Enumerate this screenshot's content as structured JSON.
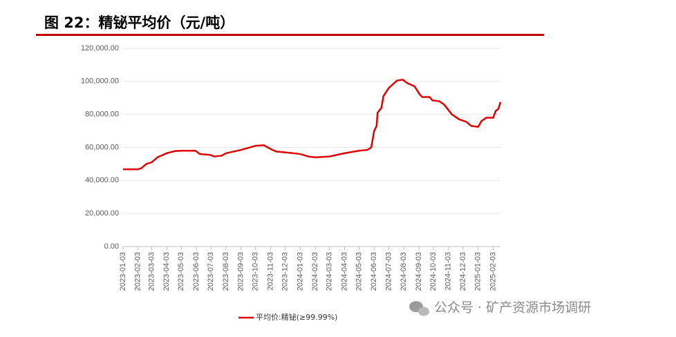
{
  "chart_data": {
    "type": "line",
    "title": "图 22：精铋平均价（元/吨）",
    "watermark": "公众号 · 矿产资源市场调研",
    "x": [
      "2023-01-03",
      "2023-02-03",
      "2023-02-10",
      "2023-02-20",
      "2023-03-03",
      "2023-03-15",
      "2023-04-03",
      "2023-04-20",
      "2023-05-03",
      "2023-06-01",
      "2023-06-10",
      "2023-07-01",
      "2023-07-10",
      "2023-07-25",
      "2023-08-03",
      "2023-09-03",
      "2023-10-03",
      "2023-10-20",
      "2023-11-03",
      "2023-11-15",
      "2023-12-03",
      "2024-01-03",
      "2024-01-20",
      "2024-02-03",
      "2024-03-03",
      "2024-04-03",
      "2024-05-03",
      "2024-05-20",
      "2024-05-28",
      "2024-06-03",
      "2024-06-08",
      "2024-06-10",
      "2024-06-18",
      "2024-06-22",
      "2024-07-03",
      "2024-07-20",
      "2024-08-01",
      "2024-08-10",
      "2024-08-25",
      "2024-09-05",
      "2024-09-10",
      "2024-09-25",
      "2024-10-01",
      "2024-10-15",
      "2024-10-25",
      "2024-11-10",
      "2024-11-25",
      "2024-12-10",
      "2024-12-20",
      "2025-01-03",
      "2025-01-10",
      "2025-01-20",
      "2025-02-03",
      "2025-02-08",
      "2025-02-14",
      "2025-02-18"
    ],
    "series": [
      {
        "name": "平均价:精铋(≥99.99%)",
        "color": "#e00000",
        "values": [
          46800,
          46800,
          47500,
          50000,
          51000,
          54000,
          56500,
          57800,
          58000,
          58000,
          56000,
          55500,
          54500,
          55000,
          56500,
          58500,
          61000,
          61300,
          59000,
          57500,
          57000,
          56000,
          54500,
          54000,
          54500,
          56500,
          58000,
          58500,
          60000,
          70000,
          73000,
          81000,
          84000,
          91000,
          96000,
          100500,
          101000,
          99000,
          97000,
          92000,
          90500,
          90500,
          88500,
          88000,
          86000,
          80000,
          77000,
          75500,
          73000,
          72500,
          76000,
          78000,
          78000,
          82000,
          83500,
          87500
        ]
      }
    ],
    "xlim": [
      "2023-01-03",
      "2025-02-18"
    ],
    "xticks": [
      "2023-01-03",
      "2023-02-03",
      "2023-03-03",
      "2023-04-03",
      "2023-05-03",
      "2023-06-03",
      "2023-07-03",
      "2023-08-03",
      "2023-09-03",
      "2023-10-03",
      "2023-11-03",
      "2023-12-03",
      "2024-01-03",
      "2024-02-03",
      "2024-03-03",
      "2024-04-03",
      "2024-05-03",
      "2024-06-03",
      "2024-07-03",
      "2024-08-03",
      "2024-09-03",
      "2024-10-03",
      "2024-11-03",
      "2024-12-03",
      "2025-01-03",
      "2025-02-03"
    ],
    "ylim": [
      0,
      120000
    ],
    "yticks": [
      {
        "value": 0,
        "label": "0.00"
      },
      {
        "value": 20000,
        "label": "20,000.00"
      },
      {
        "value": 40000,
        "label": "40,000.00"
      },
      {
        "value": 60000,
        "label": "60,000.00"
      },
      {
        "value": 80000,
        "label": "80,000.00"
      },
      {
        "value": 100000,
        "label": "100,000.00"
      },
      {
        "value": 120000,
        "label": "120,000.00"
      }
    ],
    "grid": true
  }
}
